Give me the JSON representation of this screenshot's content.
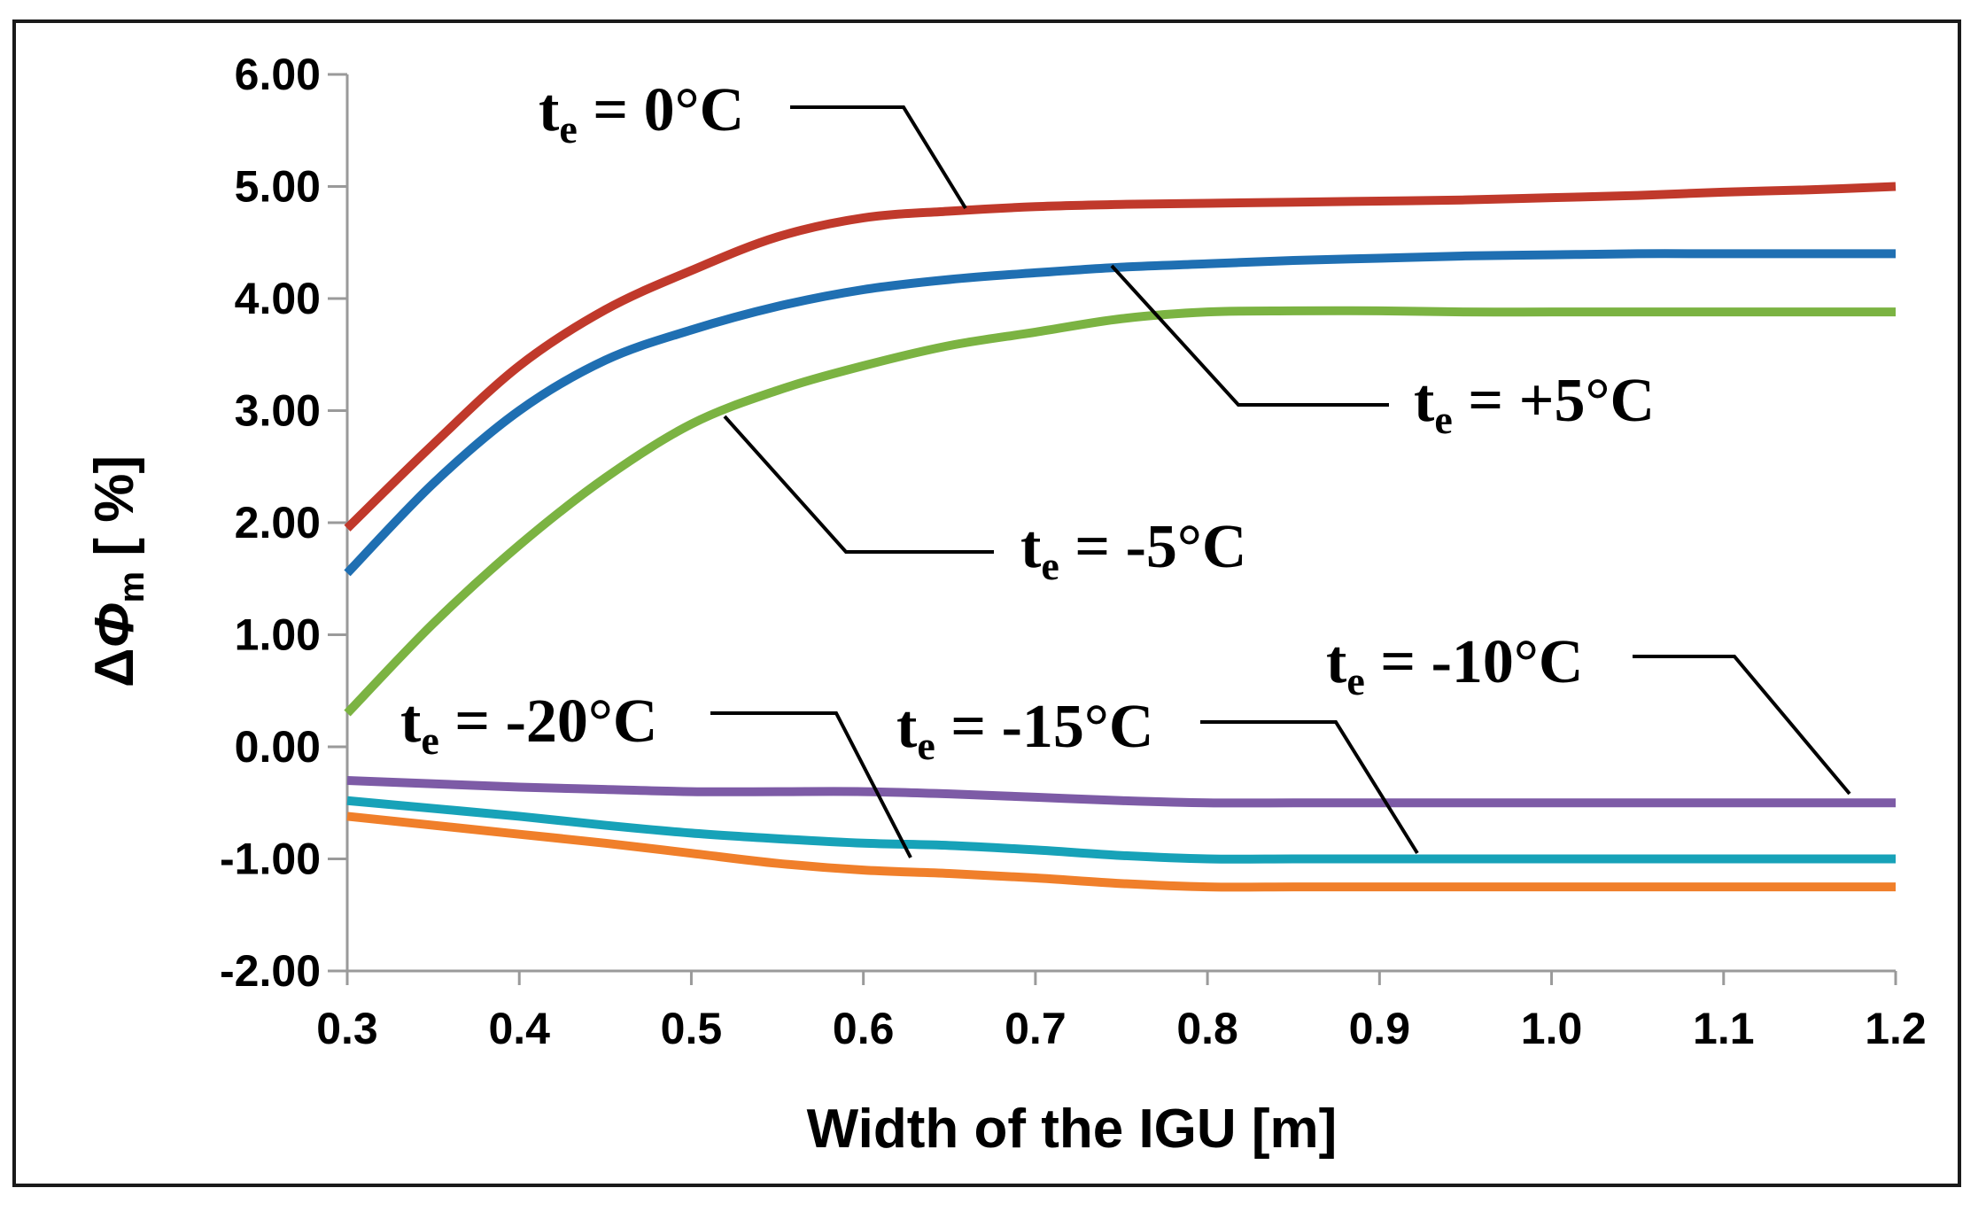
{
  "chart_data": {
    "type": "line",
    "title": "",
    "xlabel": "Width of the IGU [m]",
    "ylabel": "ΔΦm [ %]",
    "ylabel_parts": {
      "delta": "Δ",
      "phi": "Φ",
      "sub": "m",
      "rest": " [ %]"
    },
    "xlim": [
      0.3,
      1.2
    ],
    "ylim": [
      -2.0,
      6.0
    ],
    "x_ticks": [
      "0.3",
      "0.4",
      "0.5",
      "0.6",
      "0.7",
      "0.8",
      "0.9",
      "1.0",
      "1.1",
      "1.2"
    ],
    "y_ticks": [
      "6.00",
      "5.00",
      "4.00",
      "3.00",
      "2.00",
      "1.00",
      "0.00",
      "-1.00",
      "-2.00"
    ],
    "x": [
      0.3,
      0.35,
      0.4,
      0.45,
      0.5,
      0.55,
      0.6,
      0.65,
      0.7,
      0.75,
      0.8,
      0.85,
      0.9,
      0.95,
      1.0,
      1.05,
      1.1,
      1.15,
      1.2
    ],
    "series": [
      {
        "name": "te = 0°C",
        "color": "#c0392b",
        "values": [
          1.95,
          2.7,
          3.4,
          3.9,
          4.25,
          4.55,
          4.72,
          4.78,
          4.82,
          4.84,
          4.85,
          4.86,
          4.87,
          4.88,
          4.9,
          4.92,
          4.95,
          4.97,
          5.0
        ]
      },
      {
        "name": "te = +5°C",
        "color": "#1f6fb2",
        "values": [
          1.55,
          2.35,
          3.0,
          3.45,
          3.72,
          3.93,
          4.08,
          4.17,
          4.23,
          4.28,
          4.31,
          4.34,
          4.36,
          4.38,
          4.39,
          4.4,
          4.4,
          4.4,
          4.4
        ]
      },
      {
        "name": "te = -5°C",
        "color": "#7bb342",
        "values": [
          0.3,
          1.1,
          1.8,
          2.4,
          2.88,
          3.18,
          3.4,
          3.58,
          3.7,
          3.82,
          3.88,
          3.89,
          3.89,
          3.88,
          3.88,
          3.88,
          3.88,
          3.88,
          3.88
        ]
      },
      {
        "name": "te = -10°C",
        "color": "#7d5ba6",
        "values": [
          -0.3,
          -0.33,
          -0.36,
          -0.38,
          -0.4,
          -0.4,
          -0.4,
          -0.42,
          -0.45,
          -0.48,
          -0.5,
          -0.5,
          -0.5,
          -0.5,
          -0.5,
          -0.5,
          -0.5,
          -0.5,
          -0.5
        ]
      },
      {
        "name": "te = -15°C",
        "color": "#17a2b8",
        "values": [
          -0.48,
          -0.55,
          -0.62,
          -0.7,
          -0.77,
          -0.82,
          -0.86,
          -0.88,
          -0.92,
          -0.97,
          -1.0,
          -1.0,
          -1.0,
          -1.0,
          -1.0,
          -1.0,
          -1.0,
          -1.0,
          -1.0
        ]
      },
      {
        "name": "te = -20°C",
        "color": "#f07f2a",
        "values": [
          -0.62,
          -0.7,
          -0.78,
          -0.86,
          -0.95,
          -1.04,
          -1.1,
          -1.13,
          -1.17,
          -1.22,
          -1.25,
          -1.25,
          -1.25,
          -1.25,
          -1.25,
          -1.25,
          -1.25,
          -1.25,
          -1.25
        ]
      }
    ],
    "annotations": [
      {
        "main": "t",
        "sub": "e",
        "rest": " = 0°C",
        "series": "te = 0°C"
      },
      {
        "main": "t",
        "sub": "e",
        "rest": " = +5°C",
        "series": "te = +5°C"
      },
      {
        "main": "t",
        "sub": "e",
        "rest": " = -5°C",
        "series": "te = -5°C"
      },
      {
        "main": "t",
        "sub": "e",
        "rest": " = -10°C",
        "series": "te = -10°C"
      },
      {
        "main": "t",
        "sub": "e",
        "rest": " = -15°C",
        "series": "te = -15°C"
      },
      {
        "main": "t",
        "sub": "e",
        "rest": " = -20°C",
        "series": "te = -20°C"
      }
    ],
    "grid": false,
    "legend": "none"
  }
}
